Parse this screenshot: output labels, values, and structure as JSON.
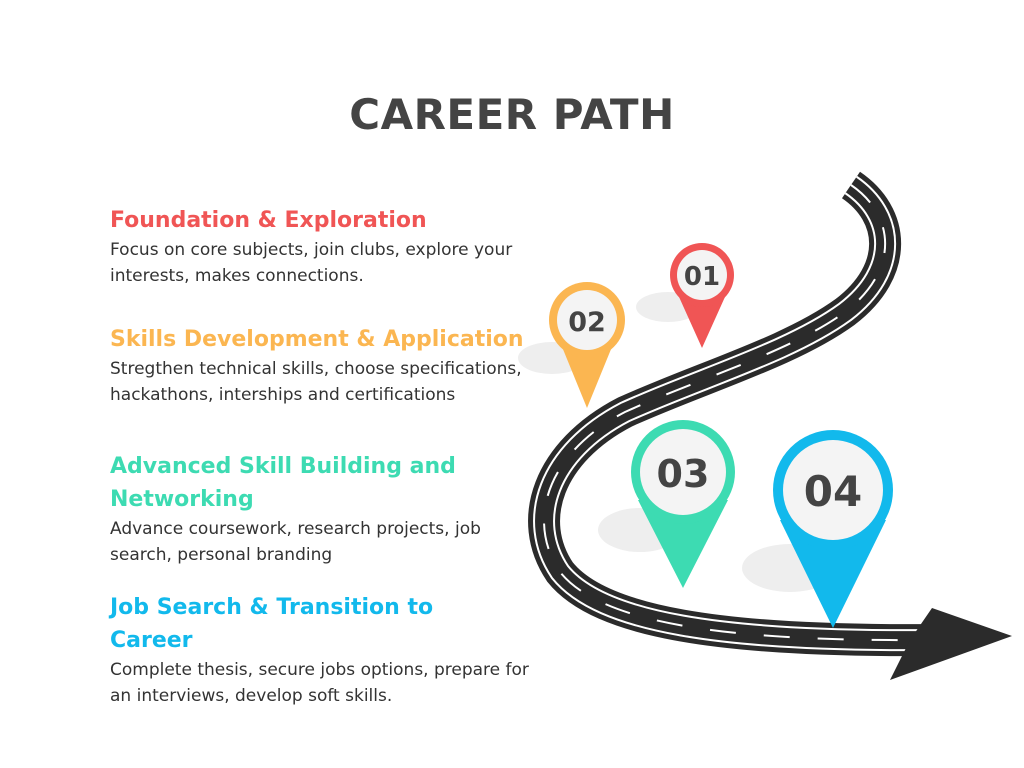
{
  "title": "CAREER PATH",
  "steps": [
    {
      "number": "01",
      "heading": "Foundation & Exploration",
      "description": "Focus on core subjects, join clubs, explore your interests, makes connections.",
      "color": "#f05555"
    },
    {
      "number": "02",
      "heading": "Skills Development & Application",
      "description": "Stregthen technical skills, choose specifications, hackathons, interships and certifications",
      "color": "#fbb651"
    },
    {
      "number": "03",
      "heading": "Advanced Skill Building and Networking",
      "description": "Advance coursework, research projects, job search, personal branding",
      "color": "#3ddbb2"
    },
    {
      "number": "04",
      "heading": "Job Search & Transition to Career",
      "description": "Complete thesis, secure jobs options, prepare for an interviews, develop soft skills.",
      "color": "#12b9ec"
    }
  ],
  "colors": {
    "title": "#444444",
    "road": "#2b2b2b",
    "pin_face": "#f4f4f4",
    "shadow": "#eeeeee"
  }
}
